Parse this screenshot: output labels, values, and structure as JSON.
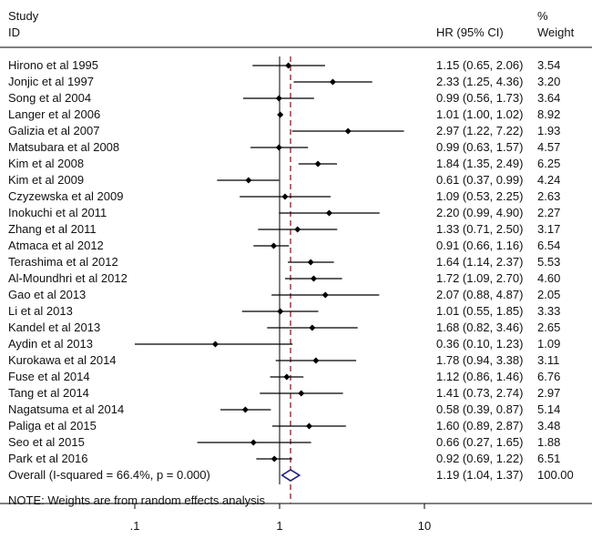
{
  "header": {
    "study_line1": "Study",
    "study_line2": "ID",
    "hr_label": "HR (95% CI)",
    "weight_line1": "%",
    "weight_line2": "Weight"
  },
  "chart_data": {
    "type": "forest",
    "xscale": "log",
    "xlim": [
      0.05,
      20
    ],
    "xticks": [
      ".1",
      "1",
      "10"
    ],
    "xtick_values": [
      0.1,
      1,
      10
    ],
    "null_line": 1,
    "summary_line": 1.19,
    "studies": [
      {
        "label": "Hirono et al 1995",
        "hr": 1.15,
        "lo": 0.65,
        "hi": 2.06,
        "ci": "1.15 (0.65, 2.06)",
        "weight": "3.54"
      },
      {
        "label": "Jonjic et al 1997",
        "hr": 2.33,
        "lo": 1.25,
        "hi": 4.36,
        "ci": "2.33 (1.25, 4.36)",
        "weight": "3.20"
      },
      {
        "label": "Song et al 2004",
        "hr": 0.99,
        "lo": 0.56,
        "hi": 1.73,
        "ci": "0.99 (0.56, 1.73)",
        "weight": "3.64"
      },
      {
        "label": "Langer et al 2006",
        "hr": 1.01,
        "lo": 1.0,
        "hi": 1.02,
        "ci": "1.01 (1.00, 1.02)",
        "weight": "8.92"
      },
      {
        "label": "Galizia et al 2007",
        "hr": 2.97,
        "lo": 1.22,
        "hi": 7.22,
        "ci": "2.97 (1.22, 7.22)",
        "weight": "1.93"
      },
      {
        "label": "Matsubara et al 2008",
        "hr": 0.99,
        "lo": 0.63,
        "hi": 1.57,
        "ci": "0.99 (0.63, 1.57)",
        "weight": "4.57"
      },
      {
        "label": "Kim et al 2008",
        "hr": 1.84,
        "lo": 1.35,
        "hi": 2.49,
        "ci": "1.84 (1.35, 2.49)",
        "weight": "6.25"
      },
      {
        "label": "Kim et al 2009",
        "hr": 0.61,
        "lo": 0.37,
        "hi": 0.99,
        "ci": "0.61 (0.37, 0.99)",
        "weight": "4.24"
      },
      {
        "label": "Czyzewska et al 2009",
        "hr": 1.09,
        "lo": 0.53,
        "hi": 2.25,
        "ci": "1.09 (0.53, 2.25)",
        "weight": "2.63"
      },
      {
        "label": "Inokuchi et al 2011",
        "hr": 2.2,
        "lo": 0.99,
        "hi": 4.9,
        "ci": "2.20 (0.99, 4.90)",
        "weight": "2.27"
      },
      {
        "label": "Zhang et al 2011",
        "hr": 1.33,
        "lo": 0.71,
        "hi": 2.5,
        "ci": "1.33 (0.71, 2.50)",
        "weight": "3.17"
      },
      {
        "label": "Atmaca et al 2012",
        "hr": 0.91,
        "lo": 0.66,
        "hi": 1.16,
        "ci": "0.91 (0.66, 1.16)",
        "weight": "6.54"
      },
      {
        "label": "Terashima et al 2012",
        "hr": 1.64,
        "lo": 1.14,
        "hi": 2.37,
        "ci": "1.64 (1.14, 2.37)",
        "weight": "5.53"
      },
      {
        "label": "Al-Moundhri et al 2012",
        "hr": 1.72,
        "lo": 1.09,
        "hi": 2.7,
        "ci": "1.72 (1.09, 2.70)",
        "weight": "4.60"
      },
      {
        "label": "Gao et al 2013",
        "hr": 2.07,
        "lo": 0.88,
        "hi": 4.87,
        "ci": "2.07 (0.88, 4.87)",
        "weight": "2.05"
      },
      {
        "label": "Li et al 2013",
        "hr": 1.01,
        "lo": 0.55,
        "hi": 1.85,
        "ci": "1.01 (0.55, 1.85)",
        "weight": "3.33"
      },
      {
        "label": "Kandel et al 2013",
        "hr": 1.68,
        "lo": 0.82,
        "hi": 3.46,
        "ci": "1.68 (0.82, 3.46)",
        "weight": "2.65"
      },
      {
        "label": "Aydin et al 2013",
        "hr": 0.36,
        "lo": 0.1,
        "hi": 1.23,
        "ci": "0.36 (0.10, 1.23)",
        "weight": "1.09"
      },
      {
        "label": "Kurokawa et al 2014",
        "hr": 1.78,
        "lo": 0.94,
        "hi": 3.38,
        "ci": "1.78 (0.94, 3.38)",
        "weight": "3.11"
      },
      {
        "label": "Fuse et al 2014",
        "hr": 1.12,
        "lo": 0.86,
        "hi": 1.46,
        "ci": "1.12 (0.86, 1.46)",
        "weight": "6.76"
      },
      {
        "label": "Tang et al 2014",
        "hr": 1.41,
        "lo": 0.73,
        "hi": 2.74,
        "ci": "1.41 (0.73, 2.74)",
        "weight": "2.97"
      },
      {
        "label": "Nagatsuma et al 2014",
        "hr": 0.58,
        "lo": 0.39,
        "hi": 0.87,
        "ci": "0.58 (0.39, 0.87)",
        "weight": "5.14"
      },
      {
        "label": "Paliga et al 2015",
        "hr": 1.6,
        "lo": 0.89,
        "hi": 2.87,
        "ci": "1.60 (0.89, 2.87)",
        "weight": "3.48"
      },
      {
        "label": "Seo et al 2015",
        "hr": 0.66,
        "lo": 0.27,
        "hi": 1.65,
        "ci": "0.66 (0.27, 1.65)",
        "weight": "1.88"
      },
      {
        "label": "Park et al 2016",
        "hr": 0.92,
        "lo": 0.69,
        "hi": 1.22,
        "ci": "0.92 (0.69, 1.22)",
        "weight": "6.51"
      }
    ],
    "overall": {
      "label": "Overall  (I-squared = 66.4%, p = 0.000)",
      "hr": 1.19,
      "lo": 1.04,
      "hi": 1.37,
      "ci": "1.19 (1.04, 1.37)",
      "weight": "100.00"
    },
    "note": "NOTE: Weights are from random effects analysis",
    "colors": {
      "null_line": "#000000",
      "summary_line": "#8b1a2b",
      "diamond": "#1f1f7a",
      "axis": "#000000"
    }
  }
}
